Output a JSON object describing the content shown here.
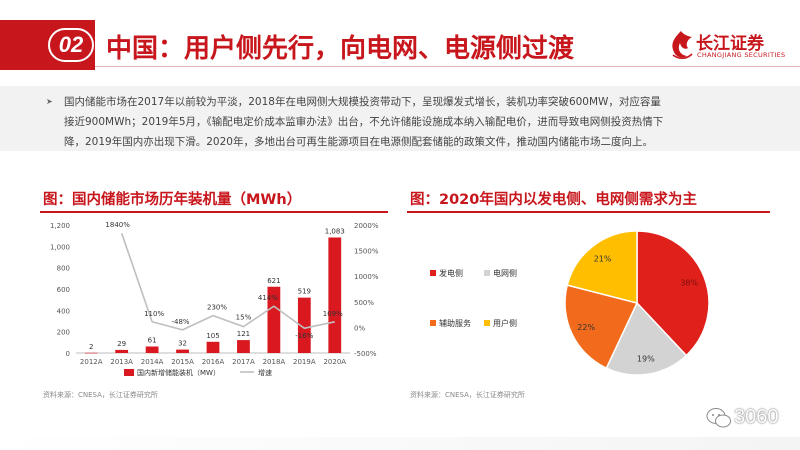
{
  "header": {
    "section_number": "02",
    "title": "中国：用户侧先行，向电网、电源侧过渡",
    "logo_cn": "长江证券",
    "logo_en": "CHANGJIANG SECURITIES"
  },
  "bullet": {
    "text": "国内储能市场在2017年以前较为平淡，2018年在电网侧大规模投资带动下，呈现爆发式增长，装机功率突破600MW，对应容量接近900MWh；2019年5月，《输配电定价成本监审办法》出台，不允许储能设施成本纳入输配电价，进而导致电网侧投资热情下降，2019年国内亦出现下滑。2020年，多地出台可再生能源项目在电源侧配套储能的政策文件，推动国内储能市场二度向上。"
  },
  "figures": {
    "left_title": "图：国内储能市场历年装机量（MWh）",
    "right_title": "图：2020年国内以发电侧、电网侧需求为主",
    "left_source": "资料来源：CNESA，长江证券研究所",
    "right_source": "资料来源：CNESA，长江证券研究所"
  },
  "watermark": {
    "text": "3060"
  },
  "colors": {
    "brand_red": "#c8161d",
    "bar_red": "#d9181f",
    "growth_line": "#bfbfbf",
    "pie_red": "#e0201a",
    "pie_gray": "#d3d3d3",
    "pie_orange": "#f26b1d",
    "pie_yellow": "#ffbf00"
  },
  "chart_data": [
    {
      "type": "bar",
      "title": "国内储能市场历年装机量（MWh）",
      "categories": [
        "2012A",
        "2013A",
        "2014A",
        "2015A",
        "2016A",
        "2017A",
        "2018A",
        "2019A",
        "2020A"
      ],
      "series": [
        {
          "name": "国内新增储能装机（MW）",
          "type": "bar",
          "axis": "left",
          "values": [
            2,
            29,
            61,
            32,
            105,
            121,
            621,
            519,
            1083
          ],
          "labels": [
            "2",
            "29",
            "61",
            "32",
            "105",
            "121",
            "621",
            "519",
            "1,083"
          ]
        },
        {
          "name": "增速",
          "type": "line",
          "axis": "right",
          "values": [
            null,
            1840,
            110,
            -48,
            230,
            15,
            414,
            -16,
            109
          ],
          "labels": [
            "",
            "1840%",
            "110%",
            "-48%",
            "230%",
            "15%",
            "414%",
            "-16%",
            "109%"
          ]
        }
      ],
      "y_left": {
        "min": 0,
        "max": 1200,
        "ticks": [
          0,
          200,
          400,
          600,
          800,
          1000,
          1200
        ],
        "tick_labels": [
          "0",
          "200",
          "400",
          "600",
          "800",
          "1,000",
          "1,200"
        ]
      },
      "y_right": {
        "min": -500,
        "max": 2000,
        "ticks": [
          -500,
          0,
          500,
          1000,
          1500,
          2000
        ],
        "tick_labels": [
          "-500%",
          "0%",
          "500%",
          "1000%",
          "1500%",
          "2000%"
        ]
      },
      "grid": false,
      "legend_position": "bottom"
    },
    {
      "type": "pie",
      "title": "2020年国内以发电侧、电网侧需求为主",
      "slices": [
        {
          "name": "发电侧",
          "value": 38,
          "label": "38%"
        },
        {
          "name": "电网侧",
          "value": 19,
          "label": "19%"
        },
        {
          "name": "辅助服务",
          "value": 22,
          "label": "22%"
        },
        {
          "name": "用户侧",
          "value": 21,
          "label": "21%"
        }
      ],
      "legend_position": "left"
    }
  ]
}
